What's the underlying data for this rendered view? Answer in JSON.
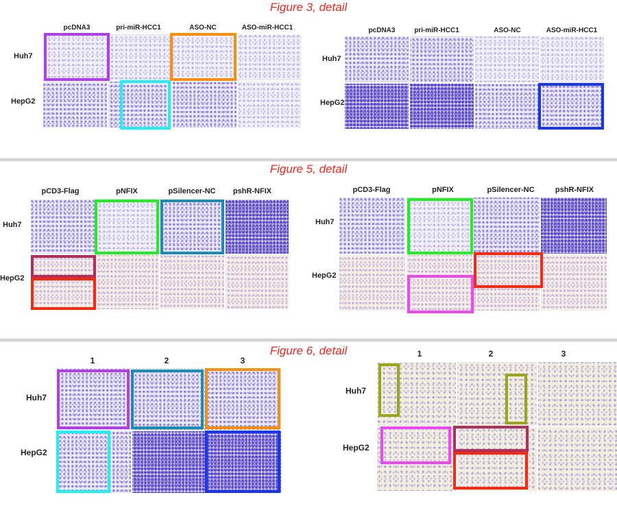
{
  "figures": [
    {
      "title": "Figure 3, detail",
      "left": {
        "columns": [
          "pcDNA3",
          "pri-miR-HCC1",
          "ASO-NC",
          "ASO-miR-HCC1"
        ],
        "rows": [
          "Huh7",
          "HepG2"
        ]
      },
      "right": {
        "columns": [
          "pcDNA3",
          "pri-miR-HCC1",
          "ASO-NC",
          "ASO-miR-HCC1"
        ],
        "rows": [
          "Huh7",
          "HepG2"
        ]
      }
    },
    {
      "title": "Figure 5, detail",
      "left": {
        "columns": [
          "pCD3-Flag",
          "pNFIX",
          "pSilencer-NC",
          "pshR-NFIX"
        ],
        "rows": [
          "Huh7",
          "HepG2"
        ]
      },
      "right": {
        "columns": [
          "pCD3-Flag",
          "pNFIX",
          "pSilencer-NC",
          "pshR-NFIX"
        ],
        "rows": [
          "Huh7",
          "HepG2"
        ]
      }
    },
    {
      "title": "Figure 6, detail",
      "left": {
        "columns": [
          "1",
          "2",
          "3"
        ],
        "rows": [
          "Huh7",
          "HepG2"
        ]
      },
      "right": {
        "columns": [
          "1",
          "2",
          "3"
        ],
        "rows": [
          "Huh7",
          "HepG2"
        ]
      }
    }
  ],
  "highlight_colors": {
    "purple": "#b13ee8",
    "orange": "#f7900f",
    "cyan": "#1ff0f5",
    "blue": "#1a35f0",
    "green": "#22ee22",
    "teal": "#1a8cb8",
    "maroon": "#b0305a",
    "red": "#f52a10",
    "magenta": "#f048f0",
    "olive": "#9aa51a"
  }
}
